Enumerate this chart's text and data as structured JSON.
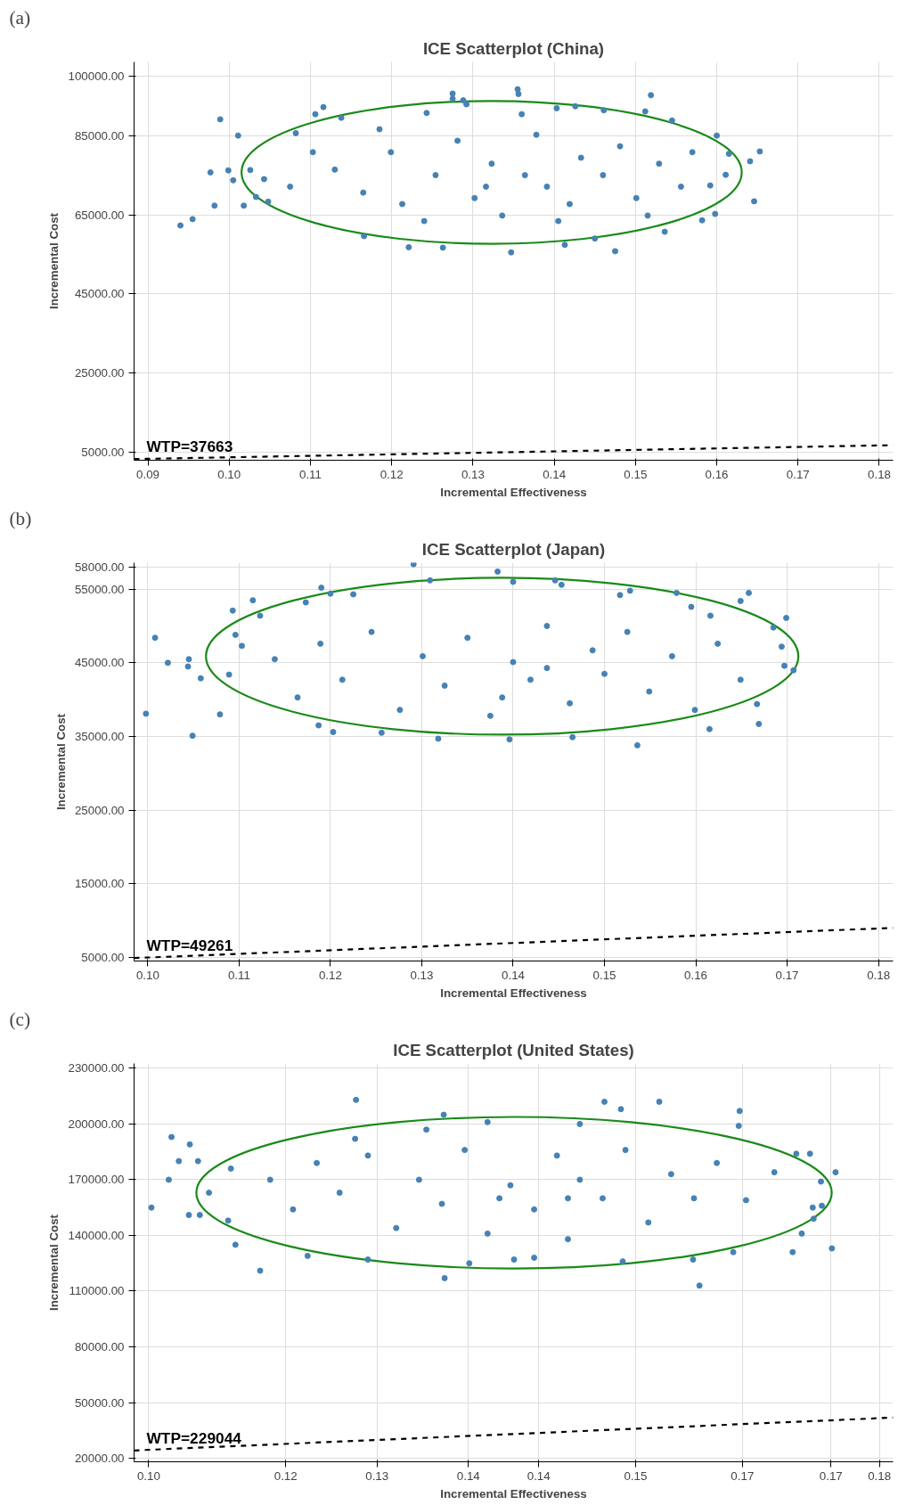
{
  "chart_data": [
    {
      "type": "scatter",
      "title": "ICE Scatterplot (China)",
      "xlabel": "Incremental Effectiveness",
      "ylabel": "Incremental Cost",
      "annotations": [
        "(a)"
      ],
      "grid": true,
      "xlim": [
        0.0883,
        0.1817
      ],
      "ylim": [
        3000,
        103600
      ],
      "xticks": [
        {
          "value": 0.09,
          "label": "0.09"
        },
        {
          "value": 0.1,
          "label": "0.10"
        },
        {
          "value": 0.11,
          "label": "0.11"
        },
        {
          "value": 0.12,
          "label": "0.12"
        },
        {
          "value": 0.13,
          "label": "0.13"
        },
        {
          "value": 0.14,
          "label": "0.14"
        },
        {
          "value": 0.15,
          "label": "0.15"
        },
        {
          "value": 0.16,
          "label": "0.16"
        },
        {
          "value": 0.17,
          "label": "0.17"
        },
        {
          "value": 0.18,
          "label": "0.18"
        }
      ],
      "yticks": [
        {
          "value": 5000,
          "label": "5000.00"
        },
        {
          "value": 25000,
          "label": "25000.00"
        },
        {
          "value": 45000,
          "label": "45000.00"
        },
        {
          "value": 65000,
          "label": "65000.00"
        },
        {
          "value": 85000,
          "label": "85000.00"
        },
        {
          "value": 100000,
          "label": "100000.00"
        }
      ],
      "series": [
        {
          "color": "#4682b4",
          "marker": "circle",
          "x": [
            0.094,
            0.0955,
            0.0977,
            0.0989,
            0.0982,
            0.0999,
            0.1005,
            0.1011,
            0.1018,
            0.1026,
            0.1033,
            0.1043,
            0.1048,
            0.1106,
            0.1116,
            0.1138,
            0.1082,
            0.1166,
            0.1221,
            0.1243,
            0.1263,
            0.1275,
            0.1275,
            0.1288,
            0.1292,
            0.1355,
            0.1356,
            0.1347,
            0.136,
            0.1403,
            0.1426,
            0.1461,
            0.1519,
            0.1512,
            0.1545,
            0.1475,
            0.145,
            0.1413,
            0.1536,
            0.16,
            0.1615,
            0.1611,
            0.1641,
            0.1653,
            0.1646,
            0.1598,
            0.1592,
            0.1582,
            0.113,
            0.1165,
            0.1199,
            0.1213,
            0.1254,
            0.1281,
            0.1302,
            0.1323,
            0.1336,
            0.1378,
            0.1391,
            0.1419,
            0.1433,
            0.146,
            0.1481,
            0.1501,
            0.1529,
            0.1556,
            0.157,
            0.1364,
            0.1316,
            0.124,
            0.1185,
            0.1103,
            0.1075,
            0.1515,
            0.1405
          ],
          "values": [
            62300,
            63900,
            75700,
            89100,
            67300,
            76200,
            73700,
            85000,
            67300,
            76300,
            69500,
            74000,
            68300,
            90400,
            92200,
            89500,
            85600,
            59600,
            56800,
            90700,
            56700,
            95600,
            94300,
            93900,
            92900,
            96700,
            95500,
            55500,
            90400,
            91900,
            92400,
            91400,
            95200,
            91100,
            88800,
            55800,
            59000,
            57400,
            60700,
            85000,
            80400,
            75100,
            78500,
            81000,
            68400,
            65200,
            72400,
            63600,
            76400,
            70600,
            80800,
            67700,
            75000,
            83700,
            69200,
            77900,
            64800,
            85200,
            72100,
            67700,
            79400,
            75000,
            82300,
            69200,
            77900,
            72100,
            80800,
            75000,
            72100,
            63400,
            86600,
            80800,
            72100,
            64800,
            63400
          ]
        },
        {
          "type": "line",
          "name": "WTP=37663",
          "color": "#000000",
          "line_style": "dashed",
          "marker": "none",
          "x": [
            0.0883,
            0.1817
          ],
          "values": [
            3300,
            6800
          ]
        }
      ]
    },
    {
      "type": "scatter",
      "title": "ICE Scatterplot (Japan)",
      "xlabel": "Incremental Effectiveness",
      "ylabel": "Incremental Cost",
      "annotations": [
        "(b)"
      ],
      "grid": true,
      "xlim": [
        0.0985,
        0.1816
      ],
      "ylim": [
        4500,
        58600
      ],
      "xticks": [
        {
          "value": 0.1,
          "label": "0.10"
        },
        {
          "value": 0.11,
          "label": "0.11"
        },
        {
          "value": 0.12,
          "label": "0.12"
        },
        {
          "value": 0.13,
          "label": "0.13"
        },
        {
          "value": 0.14,
          "label": "0.14"
        },
        {
          "value": 0.15,
          "label": "0.15"
        },
        {
          "value": 0.16,
          "label": "0.16"
        },
        {
          "value": 0.17,
          "label": "0.17"
        },
        {
          "value": 0.18,
          "label": "0.18"
        }
      ],
      "yticks": [
        {
          "value": 5000,
          "label": "5000.00"
        },
        {
          "value": 15000,
          "label": "15000.00"
        },
        {
          "value": 25000,
          "label": "25000.00"
        },
        {
          "value": 35000,
          "label": "35000.00"
        },
        {
          "value": 45000,
          "label": "45000.00"
        },
        {
          "value": 55000,
          "label": "55000.00"
        },
        {
          "value": 58000,
          "label": "58000.00"
        }
      ],
      "series": [
        {
          "color": "#4682b4",
          "marker": "circle",
          "x": [
            0.0998,
            0.1008,
            0.1022,
            0.1045,
            0.1044,
            0.1049,
            0.1058,
            0.1079,
            0.1089,
            0.1093,
            0.1096,
            0.1115,
            0.1123,
            0.1103,
            0.119,
            0.12,
            0.1225,
            0.1173,
            0.1203,
            0.1187,
            0.1256,
            0.1291,
            0.1309,
            0.1318,
            0.1383,
            0.14,
            0.1396,
            0.1446,
            0.1453,
            0.1465,
            0.1528,
            0.1517,
            0.1536,
            0.1579,
            0.1595,
            0.1616,
            0.1615,
            0.1649,
            0.1658,
            0.1669,
            0.1667,
            0.1685,
            0.1699,
            0.1697,
            0.1707,
            0.1694,
            0.1139,
            0.1164,
            0.1189,
            0.1213,
            0.1245,
            0.1276,
            0.1301,
            0.1325,
            0.135,
            0.1375,
            0.14,
            0.1419,
            0.1437,
            0.1462,
            0.1487,
            0.15,
            0.1525,
            0.1549,
            0.1574,
            0.1599,
            0.1624,
            0.1649,
            0.1388,
            0.1437
          ],
          "values": [
            38100,
            48400,
            45000,
            45500,
            44500,
            35100,
            42900,
            38000,
            43400,
            52100,
            48800,
            53500,
            51400,
            47300,
            55200,
            54400,
            54300,
            53200,
            35600,
            36500,
            35500,
            58400,
            56200,
            34700,
            57400,
            56000,
            34600,
            56200,
            55600,
            34900,
            54800,
            54200,
            33800,
            54500,
            52600,
            51400,
            36000,
            53400,
            54500,
            36700,
            39400,
            49800,
            51100,
            44600,
            44000,
            47200,
            45500,
            40300,
            47600,
            42700,
            49200,
            38600,
            45900,
            41900,
            48400,
            37800,
            45100,
            42700,
            50000,
            39500,
            46700,
            43500,
            49200,
            41100,
            45900,
            38600,
            47600,
            42700,
            40300,
            44300
          ]
        },
        {
          "type": "line",
          "name": "WTP=49261",
          "color": "#000000",
          "line_style": "dashed",
          "marker": "none",
          "x": [
            0.0985,
            0.1816
          ],
          "values": [
            4900,
            9000
          ]
        }
      ]
    },
    {
      "type": "scatter",
      "title": "ICE Scatterplot (United States)",
      "xlabel": "Incremental Effectiveness",
      "ylabel": "Incremental Cost",
      "annotations": [
        "(c)"
      ],
      "grid": true,
      "xlim": [
        0.0984,
        0.1815
      ],
      "ylim": [
        18100,
        232600
      ],
      "xticks": [
        {
          "value": 0.1,
          "label": "0.10"
        },
        {
          "value": 0.115,
          "label": "0.12"
        },
        {
          "value": 0.125,
          "label": "0.13"
        },
        {
          "value": 0.135,
          "label": "0.14"
        },
        {
          "value": 0.1427,
          "label": "0.14"
        },
        {
          "value": 0.1533,
          "label": "0.15"
        },
        {
          "value": 0.165,
          "label": "0.17"
        },
        {
          "value": 0.1747,
          "label": "0.17"
        },
        {
          "value": 0.18,
          "label": "0.18"
        }
      ],
      "yticks": [
        {
          "value": 20000,
          "label": "20000.00"
        },
        {
          "value": 50000,
          "label": "50000.00"
        },
        {
          "value": 80000,
          "label": "80000.00"
        },
        {
          "value": 110000,
          "label": "110000.00"
        },
        {
          "value": 140000,
          "label": "140000.00"
        },
        {
          "value": 170000,
          "label": "170000.00"
        },
        {
          "value": 200000,
          "label": "200000.00"
        },
        {
          "value": 230000,
          "label": "230000.00"
        }
      ],
      "series": [
        {
          "color": "#4682b4",
          "marker": "circle",
          "x": [
            0.1003,
            0.1022,
            0.1025,
            0.1033,
            0.1045,
            0.1044,
            0.1054,
            0.1056,
            0.1066,
            0.1087,
            0.109,
            0.1095,
            0.1122,
            0.1227,
            0.1226,
            0.1324,
            0.1323,
            0.1304,
            0.1371,
            0.1472,
            0.1499,
            0.1517,
            0.1559,
            0.1603,
            0.1646,
            0.1647,
            0.1685,
            0.1705,
            0.1709,
            0.1724,
            0.1715,
            0.1727,
            0.1737,
            0.1748,
            0.1752,
            0.1736,
            0.1728,
            0.1654,
            0.1596,
            0.164,
            0.1519,
            0.14,
            0.1351,
            0.124,
            0.1174,
            0.1422,
            0.1133,
            0.1158,
            0.1184,
            0.1209,
            0.124,
            0.1271,
            0.1296,
            0.1321,
            0.1346,
            0.1371,
            0.1396,
            0.1422,
            0.1447,
            0.1459,
            0.1472,
            0.1497,
            0.1522,
            0.1547,
            0.1572,
            0.1597,
            0.1622,
            0.1459,
            0.1384
          ],
          "values": [
            155000,
            170000,
            193000,
            180000,
            189000,
            151000,
            180000,
            151000,
            163000,
            148000,
            176000,
            135000,
            121000,
            213000,
            192000,
            117000,
            205000,
            197000,
            201000,
            200000,
            212000,
            208000,
            212000,
            113000,
            199000,
            207000,
            174000,
            131000,
            184000,
            184000,
            141000,
            155000,
            156000,
            133000,
            174000,
            169000,
            149000,
            159000,
            127000,
            131000,
            126000,
            127000,
            125000,
            127000,
            129000,
            128000,
            170000,
            154000,
            179000,
            163000,
            183000,
            144000,
            170000,
            157000,
            186000,
            141000,
            167000,
            154000,
            183000,
            138000,
            170000,
            160000,
            186000,
            147000,
            173000,
            160000,
            179000,
            160000,
            160000
          ]
        },
        {
          "type": "line",
          "name": "WTP=229044",
          "color": "#000000",
          "line_style": "dashed",
          "marker": "none",
          "x": [
            0.0984,
            0.1815
          ],
          "values": [
            24200,
            41900
          ]
        }
      ]
    }
  ]
}
